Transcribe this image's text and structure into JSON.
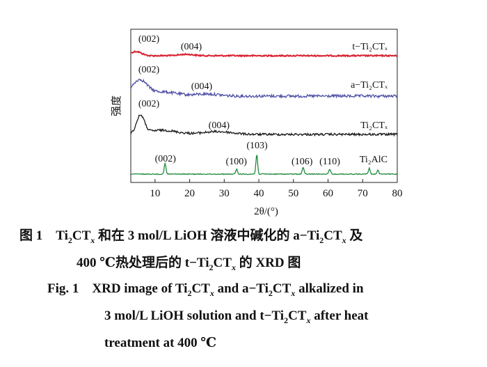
{
  "chart_data": {
    "type": "line",
    "xlabel": "2θ/(°)",
    "ylabel": "强度",
    "xlim": [
      3,
      80
    ],
    "xticks": [
      10,
      20,
      30,
      40,
      50,
      60,
      70,
      80
    ],
    "grid": false,
    "series": [
      {
        "name": "t-Ti2CTx",
        "color": "#d92231",
        "label": "t−Ti₂CTₓ",
        "annotations": [
          {
            "text": "(002)",
            "x": 6.5
          },
          {
            "text": "(004)",
            "x": 20.5
          }
        ]
      },
      {
        "name": "a-Ti2CTx",
        "color": "#5050a6",
        "label": "a−Ti₂CTₓ",
        "annotations": [
          {
            "text": "(002)",
            "x": 6.5
          },
          {
            "text": "(004)",
            "x": 23.5
          }
        ]
      },
      {
        "name": "Ti2CTx",
        "color": "#1a1a1a",
        "label": "Ti₂CTₓ",
        "annotations": [
          {
            "text": "(002)",
            "x": 6.5
          },
          {
            "text": "(004)",
            "x": 28.5
          }
        ]
      },
      {
        "name": "Ti2AlC",
        "color": "#1f8a3c",
        "label": "Ti₂AlC",
        "annotations": [
          {
            "text": "(002)",
            "x": 13
          },
          {
            "text": "(100)",
            "x": 33.5
          },
          {
            "text": "(103)",
            "x": 39.5
          },
          {
            "text": "(106)",
            "x": 52.5
          },
          {
            "text": "(110)",
            "x": 60.5
          }
        ],
        "peaks": [
          {
            "x": 12.9,
            "height": 0.55
          },
          {
            "x": 33.6,
            "height": 0.25
          },
          {
            "x": 39.4,
            "height": 1.0
          },
          {
            "x": 52.8,
            "height": 0.35
          },
          {
            "x": 60.5,
            "height": 0.25
          },
          {
            "x": 71.9,
            "height": 0.3
          },
          {
            "x": 74.4,
            "height": 0.2
          }
        ]
      }
    ]
  },
  "caption": {
    "cn_line1_a": "图 1　Ti",
    "cn_line1_b": "2",
    "cn_line1_c": "CT",
    "cn_line1_d": "x",
    "cn_line1_e": " 和在 3  mol/L LiOH 溶液中碱化的 a−Ti",
    "cn_line1_f": "2",
    "cn_line1_g": "CT",
    "cn_line1_h": "x",
    "cn_line1_i": " 及",
    "cn_line2_a": "400 ℃热处理后的 t−Ti",
    "cn_line2_b": "2",
    "cn_line2_c": "CT",
    "cn_line2_d": "x",
    "cn_line2_e": " 的 XRD 图",
    "en_line1_a": "Fig. 1　XRD image of Ti",
    "en_line1_b": "2",
    "en_line1_c": "CT",
    "en_line1_d": "x",
    "en_line1_e": " and a−Ti",
    "en_line1_f": "2",
    "en_line1_g": "CT",
    "en_line1_h": "x",
    "en_line1_i": " alkalized in",
    "en_line2_a": "3 mol/L LiOH solution and t−Ti",
    "en_line2_b": "2",
    "en_line2_c": "CT",
    "en_line2_d": "x",
    "en_line2_e": " after heat",
    "en_line3": "treatment at 400 ℃"
  }
}
